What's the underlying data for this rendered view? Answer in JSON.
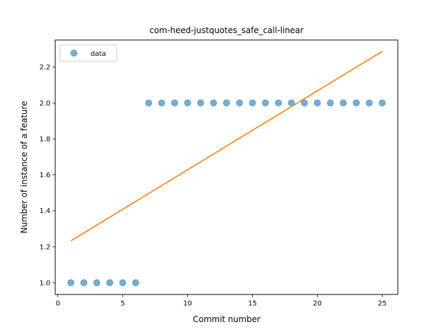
{
  "chart_data": {
    "type": "scatter",
    "title": "com-heed-justquotes_safe_call-linear",
    "xlabel": "Commit number",
    "ylabel": "Number of instance of a feature",
    "xlim": [
      -0.2,
      26.2
    ],
    "ylim": [
      0.935,
      2.35
    ],
    "xticks": [
      0,
      5,
      10,
      15,
      20,
      25
    ],
    "yticks": [
      1.0,
      1.2,
      1.4,
      1.6,
      1.8,
      2.0,
      2.2
    ],
    "ytick_labels": [
      "1.0",
      "1.2",
      "1.4",
      "1.6",
      "1.8",
      "2.0",
      "2.2"
    ],
    "grid": false,
    "legend": {
      "placement": "upper-left",
      "entries": [
        "data"
      ]
    },
    "series": [
      {
        "name": "data",
        "kind": "scatter",
        "color": "#1f77b4",
        "x": [
          1,
          2,
          3,
          4,
          5,
          6,
          7,
          8,
          9,
          10,
          11,
          12,
          13,
          14,
          15,
          16,
          17,
          18,
          19,
          20,
          21,
          22,
          23,
          24,
          25
        ],
        "y": [
          1,
          1,
          1,
          1,
          1,
          1,
          2,
          2,
          2,
          2,
          2,
          2,
          2,
          2,
          2,
          2,
          2,
          2,
          2,
          2,
          2,
          2,
          2,
          2,
          2
        ]
      },
      {
        "kind": "line",
        "color": "#ff7f0e",
        "x": [
          1,
          25
        ],
        "y": [
          1.233,
          2.287
        ]
      }
    ]
  }
}
